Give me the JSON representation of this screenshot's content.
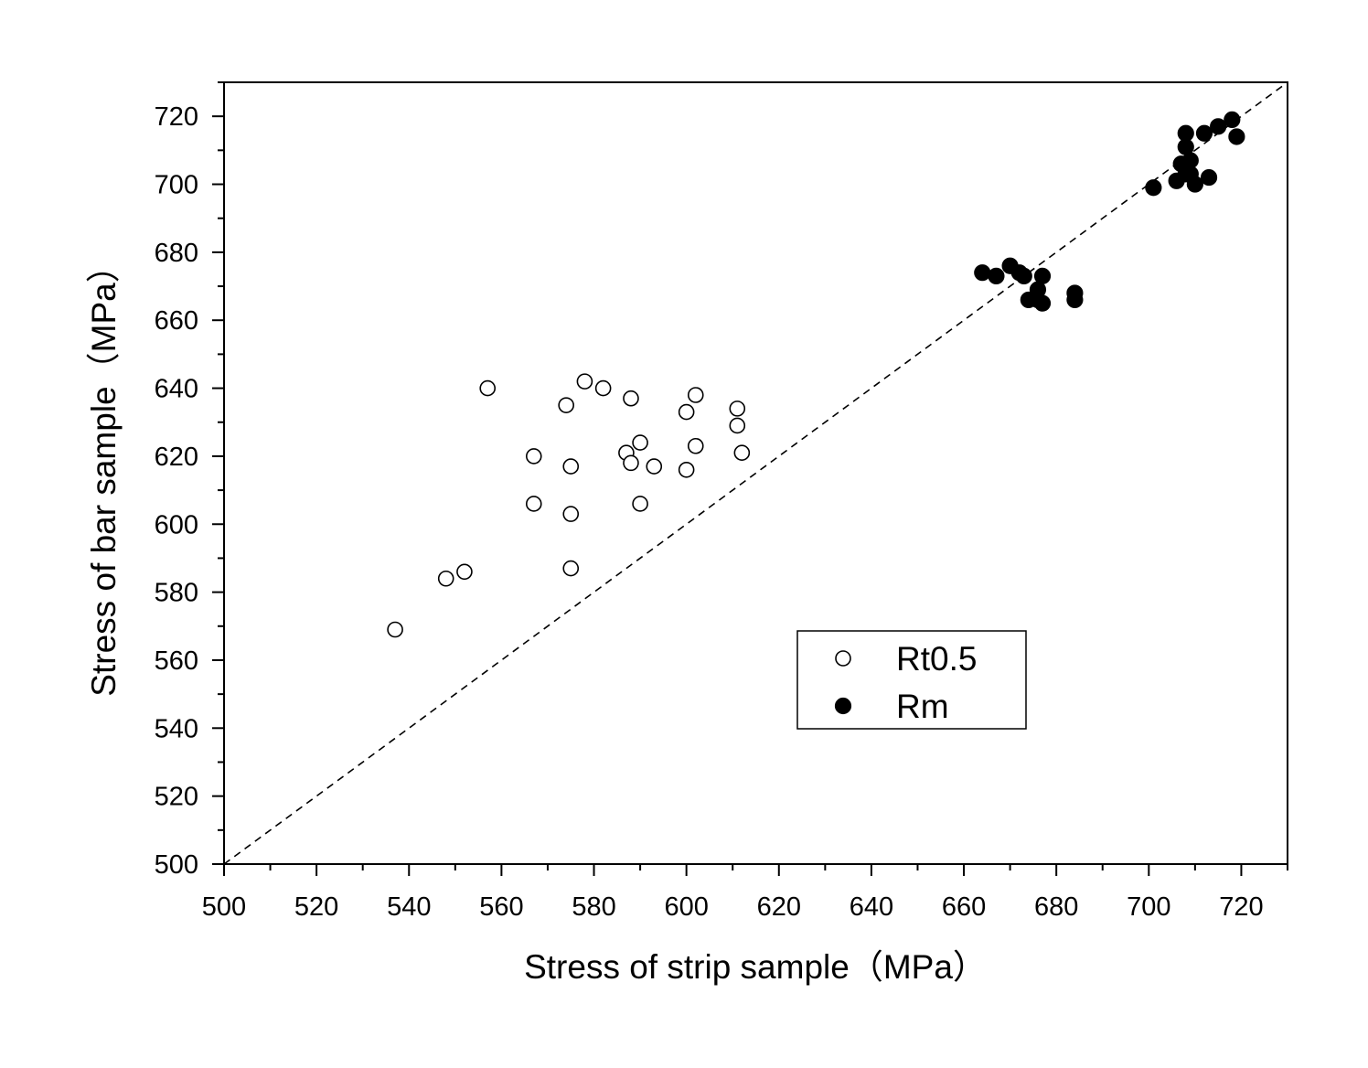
{
  "chart_data": {
    "type": "scatter",
    "xlabel": "Stress of strip sample（MPa）",
    "ylabel": "Stress of bar sample（MPa）",
    "xlim": [
      500,
      730
    ],
    "ylim": [
      500,
      730
    ],
    "xticks": [
      500,
      520,
      540,
      560,
      580,
      600,
      620,
      640,
      660,
      680,
      700,
      720
    ],
    "yticks": [
      500,
      520,
      540,
      560,
      580,
      600,
      620,
      640,
      660,
      680,
      700,
      720
    ],
    "reference_line": {
      "style": "dashed",
      "from": [
        500,
        500
      ],
      "to": [
        730,
        730
      ]
    },
    "grid": false,
    "legend_position": "lower-right",
    "series": [
      {
        "name": "Rt0.5",
        "marker": "open-circle",
        "color": "#000000",
        "points": [
          [
            537,
            569
          ],
          [
            548,
            584
          ],
          [
            552,
            586
          ],
          [
            557,
            640
          ],
          [
            567,
            620
          ],
          [
            567,
            606
          ],
          [
            574,
            635
          ],
          [
            575,
            617
          ],
          [
            575,
            603
          ],
          [
            575,
            587
          ],
          [
            578,
            642
          ],
          [
            582,
            640
          ],
          [
            587,
            621
          ],
          [
            588,
            637
          ],
          [
            588,
            618
          ],
          [
            590,
            624
          ],
          [
            590,
            606
          ],
          [
            593,
            617
          ],
          [
            600,
            633
          ],
          [
            600,
            616
          ],
          [
            602,
            638
          ],
          [
            602,
            623
          ],
          [
            611,
            634
          ],
          [
            611,
            629
          ],
          [
            612,
            621
          ]
        ]
      },
      {
        "name": "Rm",
        "marker": "filled-circle",
        "color": "#000000",
        "points": [
          [
            664,
            674
          ],
          [
            667,
            673
          ],
          [
            670,
            676
          ],
          [
            672,
            674
          ],
          [
            673,
            673
          ],
          [
            674,
            666
          ],
          [
            676,
            669
          ],
          [
            676,
            666
          ],
          [
            677,
            673
          ],
          [
            677,
            665
          ],
          [
            684,
            668
          ],
          [
            684,
            666
          ],
          [
            701,
            699
          ],
          [
            706,
            701
          ],
          [
            707,
            706
          ],
          [
            708,
            715
          ],
          [
            708,
            711
          ],
          [
            708,
            703
          ],
          [
            709,
            707
          ],
          [
            709,
            703
          ],
          [
            710,
            700
          ],
          [
            712,
            715
          ],
          [
            713,
            702
          ],
          [
            715,
            717
          ],
          [
            718,
            719
          ],
          [
            719,
            714
          ]
        ]
      }
    ]
  }
}
